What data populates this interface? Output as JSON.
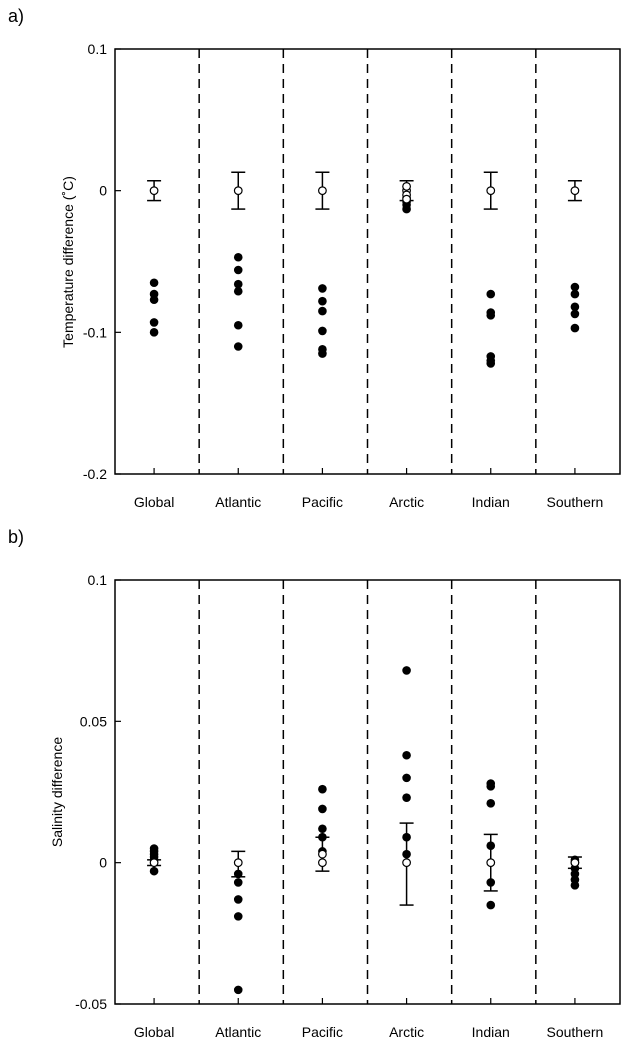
{
  "chart_data": [
    {
      "panel_label": "a)",
      "type": "scatter",
      "ylabel": "Temperature difference (˚C)",
      "xlabel": "",
      "categories": [
        "Global",
        "Atlantic",
        "Pacific",
        "Arctic",
        "Indian",
        "Southern"
      ],
      "ylim": [
        -0.2,
        0.1
      ],
      "yticks": [
        0.1,
        0,
        -0.1,
        -0.2
      ],
      "ytick_labels": [
        "0.1",
        "0",
        "-0.1",
        "-0.2"
      ],
      "grid": false,
      "separators": "dashed vertical lines between regions",
      "series": [
        {
          "marker": "filled-circle",
          "values": [
            [
              -0.065,
              -0.073,
              -0.077,
              -0.093,
              -0.1
            ],
            [
              -0.047,
              -0.056,
              -0.066,
              -0.071,
              -0.095,
              -0.11
            ],
            [
              -0.069,
              -0.078,
              -0.085,
              -0.099,
              -0.112,
              -0.115
            ],
            [
              -0.005,
              -0.008,
              -0.01,
              -0.013
            ],
            [
              -0.073,
              -0.086,
              -0.088,
              -0.117,
              -0.12,
              -0.122
            ],
            [
              -0.068,
              -0.073,
              -0.082,
              -0.087,
              -0.097
            ]
          ]
        },
        {
          "marker": "open-circle-with-errorbar",
          "values": [
            0,
            0,
            0,
            0,
            0,
            0
          ],
          "error_low": [
            -0.007,
            -0.013,
            -0.013,
            -0.007,
            -0.013,
            -0.007
          ],
          "error_high": [
            0.007,
            0.013,
            0.013,
            0.007,
            0.013,
            0.007
          ],
          "extra_open_points": [
            [],
            [],
            [],
            [
              0.003,
              -0.003,
              -0.006
            ],
            [],
            []
          ]
        }
      ]
    },
    {
      "panel_label": "b)",
      "type": "scatter",
      "ylabel": "Salinity difference",
      "xlabel": "",
      "categories": [
        "Global",
        "Atlantic",
        "Pacific",
        "Arctic",
        "Indian",
        "Southern"
      ],
      "ylim": [
        -0.05,
        0.1
      ],
      "yticks": [
        0.1,
        0.05,
        0,
        -0.05
      ],
      "ytick_labels": [
        "0.1",
        "0.05",
        "0",
        "-0.05"
      ],
      "grid": false,
      "separators": "dashed vertical lines between regions",
      "series": [
        {
          "marker": "filled-circle",
          "values": [
            [
              0.005,
              0.004,
              0.003,
              0.002,
              0.001,
              -0.003
            ],
            [
              -0.004,
              -0.007,
              -0.013,
              -0.019,
              -0.045
            ],
            [
              0.026,
              0.019,
              0.012,
              0.009,
              0.004
            ],
            [
              0.068,
              0.038,
              0.03,
              0.023,
              0.009,
              0.003
            ],
            [
              0.028,
              0.027,
              0.021,
              0.006,
              -0.007,
              -0.015
            ],
            [
              0.001,
              0.0,
              -0.002,
              -0.004,
              -0.006,
              -0.008
            ]
          ]
        },
        {
          "marker": "open-circle-with-errorbar",
          "values": [
            0,
            0,
            0.003,
            0,
            0,
            0
          ],
          "error_low": [
            -0.001,
            -0.005,
            -0.003,
            -0.015,
            -0.01,
            -0.002
          ],
          "error_high": [
            0.001,
            0.004,
            0.009,
            0.014,
            0.01,
            0.002
          ],
          "extra_open_points": [
            [],
            [],
            [
              0.0
            ],
            [],
            [],
            []
          ]
        }
      ]
    }
  ]
}
